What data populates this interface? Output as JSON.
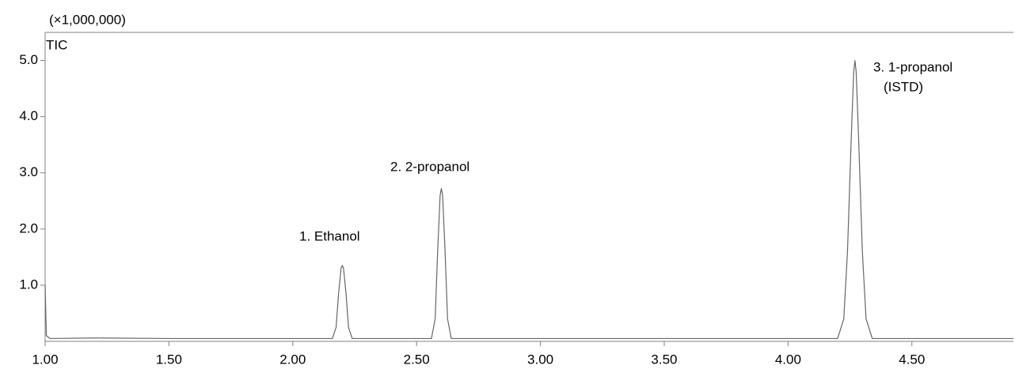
{
  "chart_data": {
    "type": "line",
    "unit_label": "(×1,000,000)",
    "trace_label": "TIC",
    "xlim": [
      1.0,
      4.91
    ],
    "ylim": [
      0,
      5.5
    ],
    "xticks": [
      {
        "value": 1.0,
        "label": "1.00"
      },
      {
        "value": 1.5,
        "label": "1.50"
      },
      {
        "value": 2.0,
        "label": "2.00"
      },
      {
        "value": 2.5,
        "label": "2.50"
      },
      {
        "value": 3.0,
        "label": "3.00"
      },
      {
        "value": 3.5,
        "label": "3.50"
      },
      {
        "value": 4.0,
        "label": "4.00"
      },
      {
        "value": 4.5,
        "label": "4.50"
      }
    ],
    "yticks": [
      {
        "value": 1,
        "label": "1.0"
      },
      {
        "value": 2,
        "label": "2.0"
      },
      {
        "value": 3,
        "label": "3.0"
      },
      {
        "value": 4,
        "label": "4.0"
      },
      {
        "value": 5,
        "label": "5.0"
      }
    ],
    "annotations": [
      "1. Ethanol",
      "2. 2-propanol",
      "3. 1-propanol",
      "(ISTD)"
    ],
    "series": [
      {
        "color": "#666666",
        "x": [
          1.0,
          1.005,
          1.02,
          1.2,
          1.5,
          2.0,
          2.16,
          2.175,
          2.185,
          2.195,
          2.2,
          2.205,
          2.215,
          2.225,
          2.24,
          2.4,
          2.56,
          2.575,
          2.585,
          2.595,
          2.6,
          2.605,
          2.615,
          2.625,
          2.64,
          3.0,
          3.5,
          4.0,
          4.2,
          4.225,
          4.24,
          4.255,
          4.265,
          4.27,
          4.275,
          4.285,
          4.3,
          4.315,
          4.34,
          4.6,
          4.91
        ],
        "y": [
          1.0,
          0.1,
          0.05,
          0.06,
          0.05,
          0.05,
          0.05,
          0.25,
          0.85,
          1.3,
          1.35,
          1.3,
          0.85,
          0.25,
          0.05,
          0.05,
          0.05,
          0.4,
          1.6,
          2.6,
          2.72,
          2.6,
          1.6,
          0.4,
          0.05,
          0.05,
          0.05,
          0.05,
          0.05,
          0.4,
          1.6,
          3.6,
          4.8,
          5.0,
          4.8,
          3.6,
          1.6,
          0.4,
          0.05,
          0.05,
          0.05
        ]
      }
    ]
  }
}
